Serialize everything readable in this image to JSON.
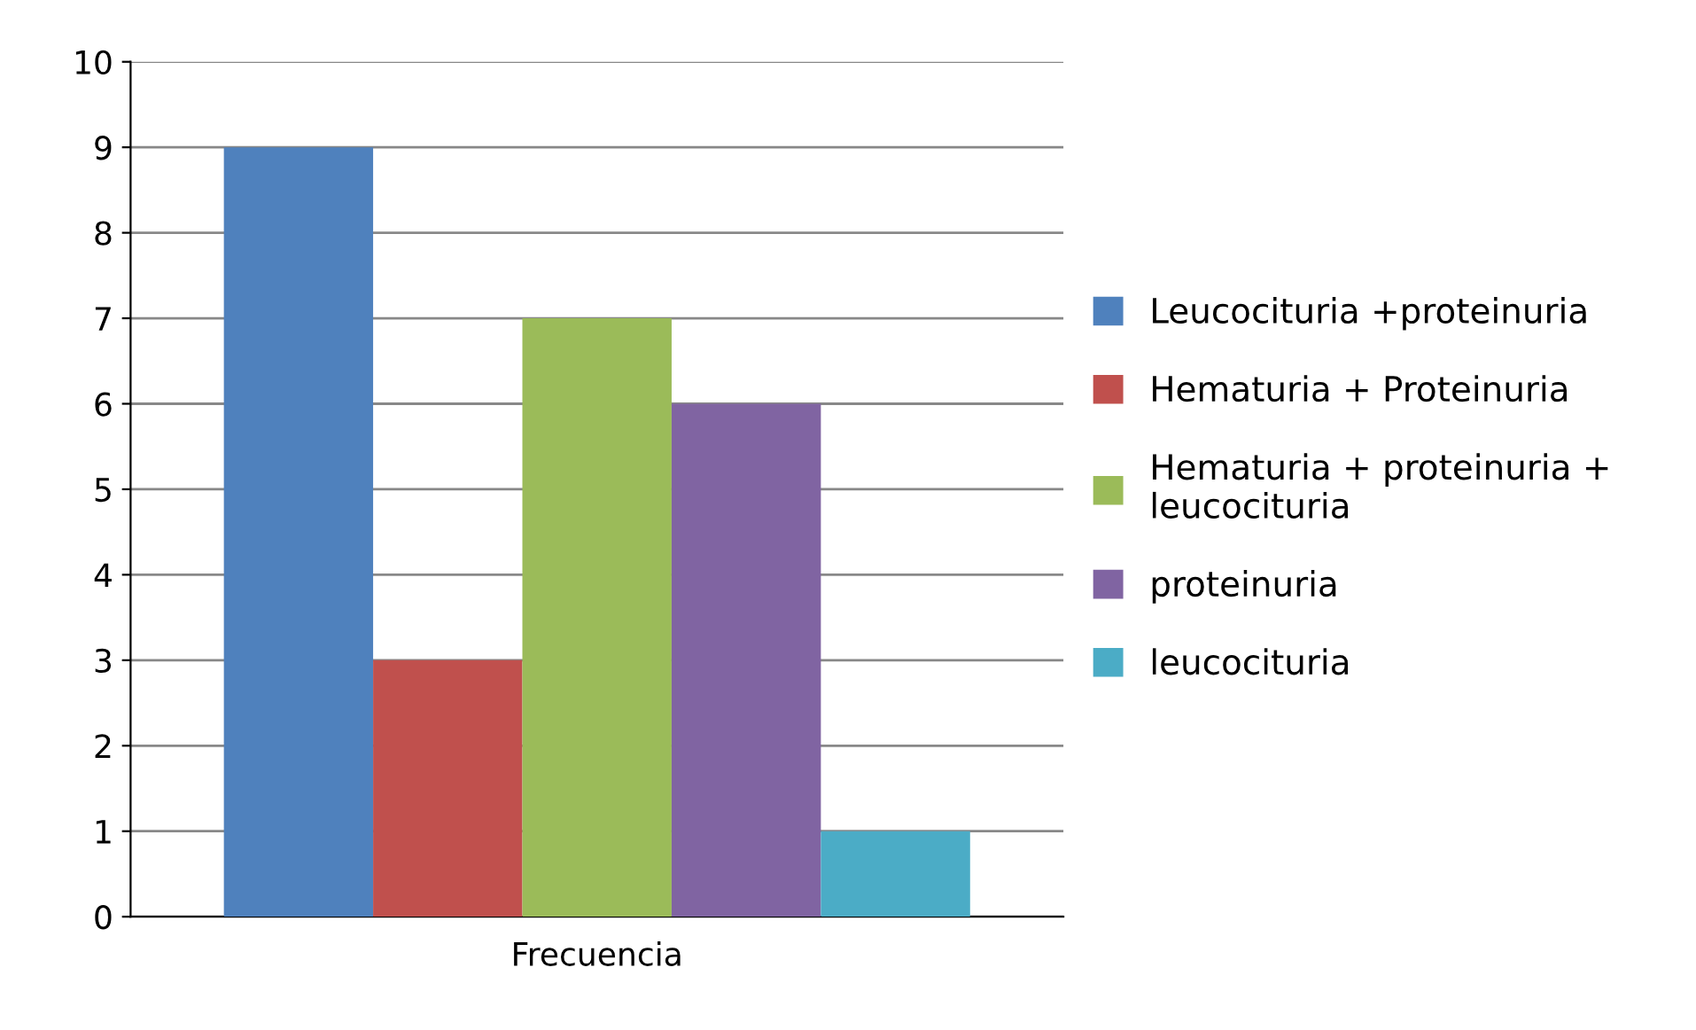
{
  "chart_data": {
    "type": "bar",
    "categories": [
      "Frecuencia"
    ],
    "series": [
      {
        "name": "Leucocituria +proteinuria",
        "color": "#4f81bd",
        "values": [
          9
        ]
      },
      {
        "name": "Hematuria + Proteinuria",
        "color": "#c0504d",
        "values": [
          3
        ]
      },
      {
        "name": "Hematuria + proteinuria + leucocituria",
        "color": "#9bbb59",
        "values": [
          7
        ]
      },
      {
        "name": "proteinuria",
        "color": "#8064a2",
        "values": [
          6
        ]
      },
      {
        "name": "leucocituria",
        "color": "#4bacc6",
        "values": [
          1
        ]
      }
    ],
    "ylim": [
      0,
      10
    ],
    "yticks": [
      0,
      1,
      2,
      3,
      4,
      5,
      6,
      7,
      8,
      9,
      10
    ],
    "grid": "y",
    "legend": "right"
  }
}
